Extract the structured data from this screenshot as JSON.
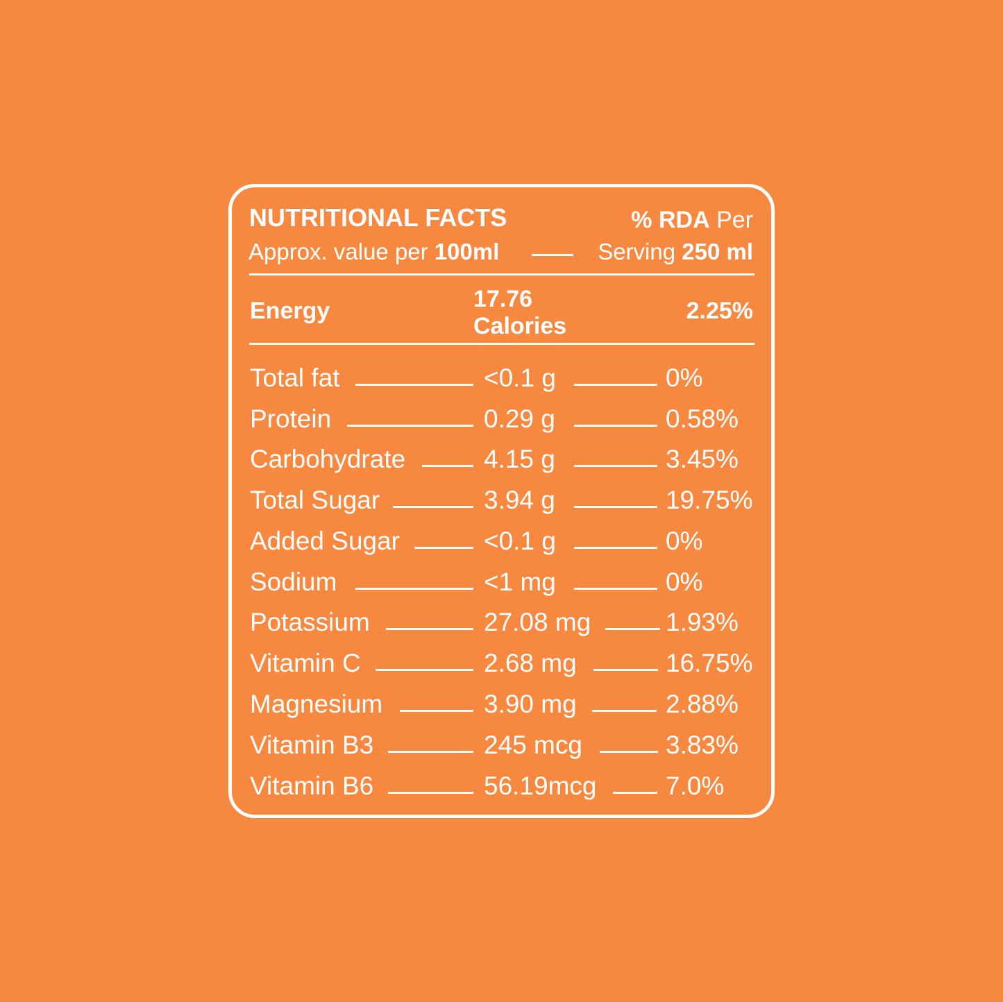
{
  "header": {
    "title": "NUTRITIONAL FACTS",
    "rda_prefix": "% RDA",
    "rda_suffix": " Per",
    "approx_prefix": "Approx. value per ",
    "approx_amount": "100ml",
    "serving_prefix": "Serving ",
    "serving_amount": "250 ml"
  },
  "energy": {
    "label": "Energy",
    "value_line1": "17.76",
    "value_line2": "Calories",
    "rda": "2.25%"
  },
  "nutrients": [
    {
      "label": "Total fat",
      "value": "<0.1 g",
      "rda": "0%"
    },
    {
      "label": "Protein",
      "value": "0.29 g",
      "rda": "0.58%"
    },
    {
      "label": "Carbohydrate",
      "value": "4.15 g",
      "rda": "3.45%"
    },
    {
      "label": "Total Sugar",
      "value": "3.94 g",
      "rda": "19.75%"
    },
    {
      "label": "Added Sugar",
      "value": "<0.1 g",
      "rda": "0%"
    },
    {
      "label": "Sodium",
      "value": "<1 mg",
      "rda": "0%"
    },
    {
      "label": "Potassium",
      "value": "27.08 mg",
      "rda": "1.93%"
    },
    {
      "label": "Vitamin C",
      "value": "2.68 mg",
      "rda": "16.75%"
    },
    {
      "label": "Magnesium",
      "value": "3.90 mg",
      "rda": "2.88%"
    },
    {
      "label": "Vitamin B3",
      "value": "245 mcg",
      "rda": "3.83%"
    },
    {
      "label": "Vitamin B6",
      "value": "56.19mcg",
      "rda": "7.0%"
    }
  ],
  "colors": {
    "background": "#F6883F",
    "foreground": "#FFFFFF"
  }
}
